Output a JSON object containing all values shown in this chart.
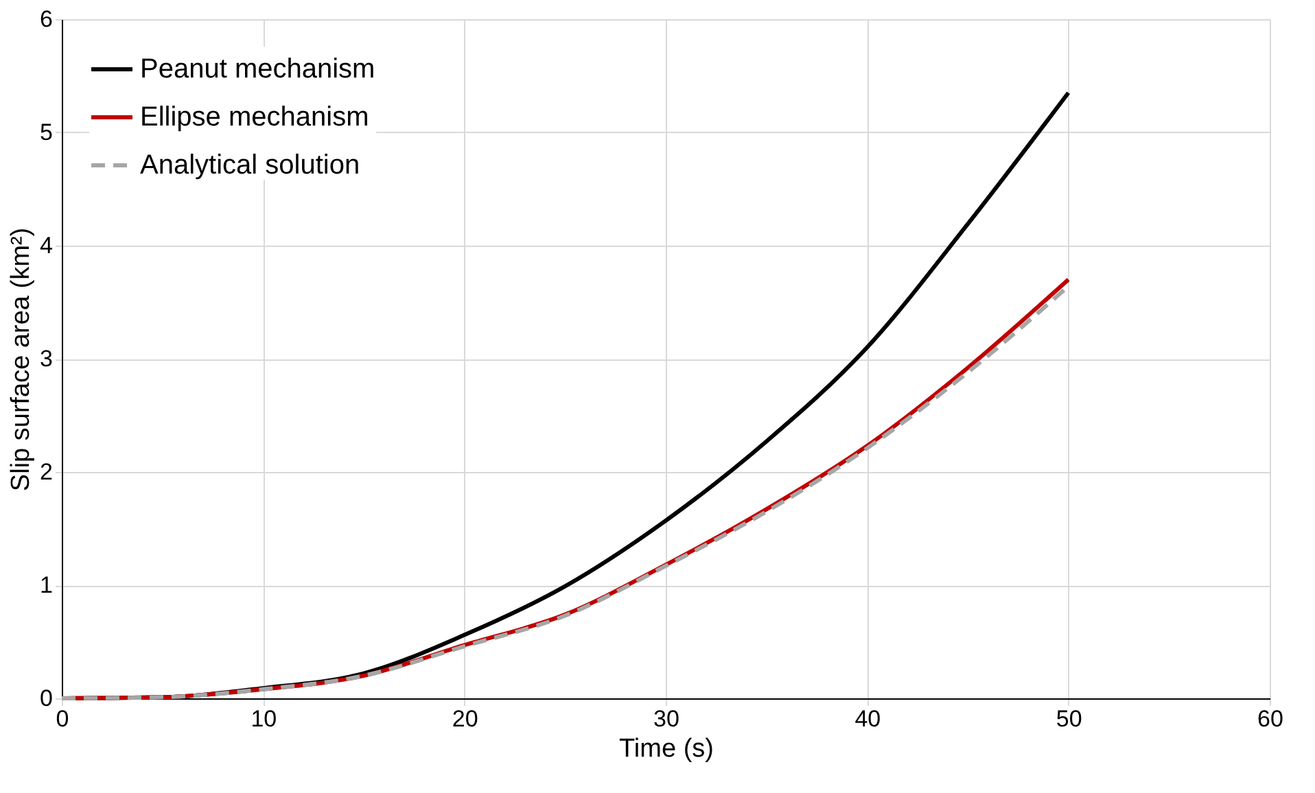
{
  "chart_data": {
    "type": "line",
    "xlabel": "Time (s)",
    "ylabel": "Slip surface area (km²)",
    "x": [
      0,
      5,
      10,
      15,
      20,
      25,
      30,
      35,
      40,
      45,
      50
    ],
    "series": [
      {
        "name": "Peanut mechanism",
        "color": "#000000",
        "line_style": "solid",
        "values": [
          0,
          0.01,
          0.09,
          0.22,
          0.56,
          0.99,
          1.57,
          2.27,
          3.1,
          4.19,
          5.35
        ]
      },
      {
        "name": "Ellipse mechanism",
        "color": "#c00000",
        "line_style": "solid",
        "values": [
          0,
          0.01,
          0.08,
          0.2,
          0.47,
          0.74,
          1.18,
          1.67,
          2.23,
          2.92,
          3.7
        ]
      },
      {
        "name": "Analytical solution",
        "color": "#a6a6a6",
        "line_style": "dashed",
        "values": [
          0,
          0.01,
          0.08,
          0.2,
          0.46,
          0.73,
          1.17,
          1.65,
          2.21,
          2.88,
          3.64
        ]
      }
    ],
    "xlim": [
      0,
      60
    ],
    "xticks": [
      0,
      10,
      20,
      30,
      40,
      50,
      60
    ],
    "ylim": [
      0,
      6
    ],
    "yticks": [
      0,
      1,
      2,
      3,
      4,
      5,
      6
    ],
    "grid": true,
    "legend": "top left",
    "marker": "none"
  }
}
